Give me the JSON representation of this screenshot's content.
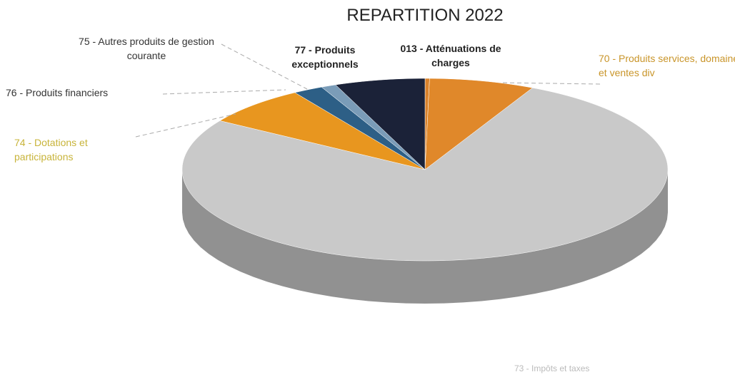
{
  "chart_data": {
    "type": "pie3d",
    "title": "REPARTITION 2022",
    "categories": [
      "013 - Atténuations de charges",
      "70 - Produits services, domaine et ventes div",
      "73 - Impôts et taxes",
      "74 - Dotations et participations",
      "76 - Produits financiers",
      "75 - Autres produits de gestion courante",
      "77 - Produits exceptionnels"
    ],
    "values": [
      0.3,
      7,
      76.7,
      7,
      2,
      1,
      6
    ],
    "colors": [
      "#d9822b",
      "#e0882a",
      "#c9c9c9",
      "#e8961f",
      "#2d5f86",
      "#7a9cb8",
      "#1b2238"
    ]
  }
}
